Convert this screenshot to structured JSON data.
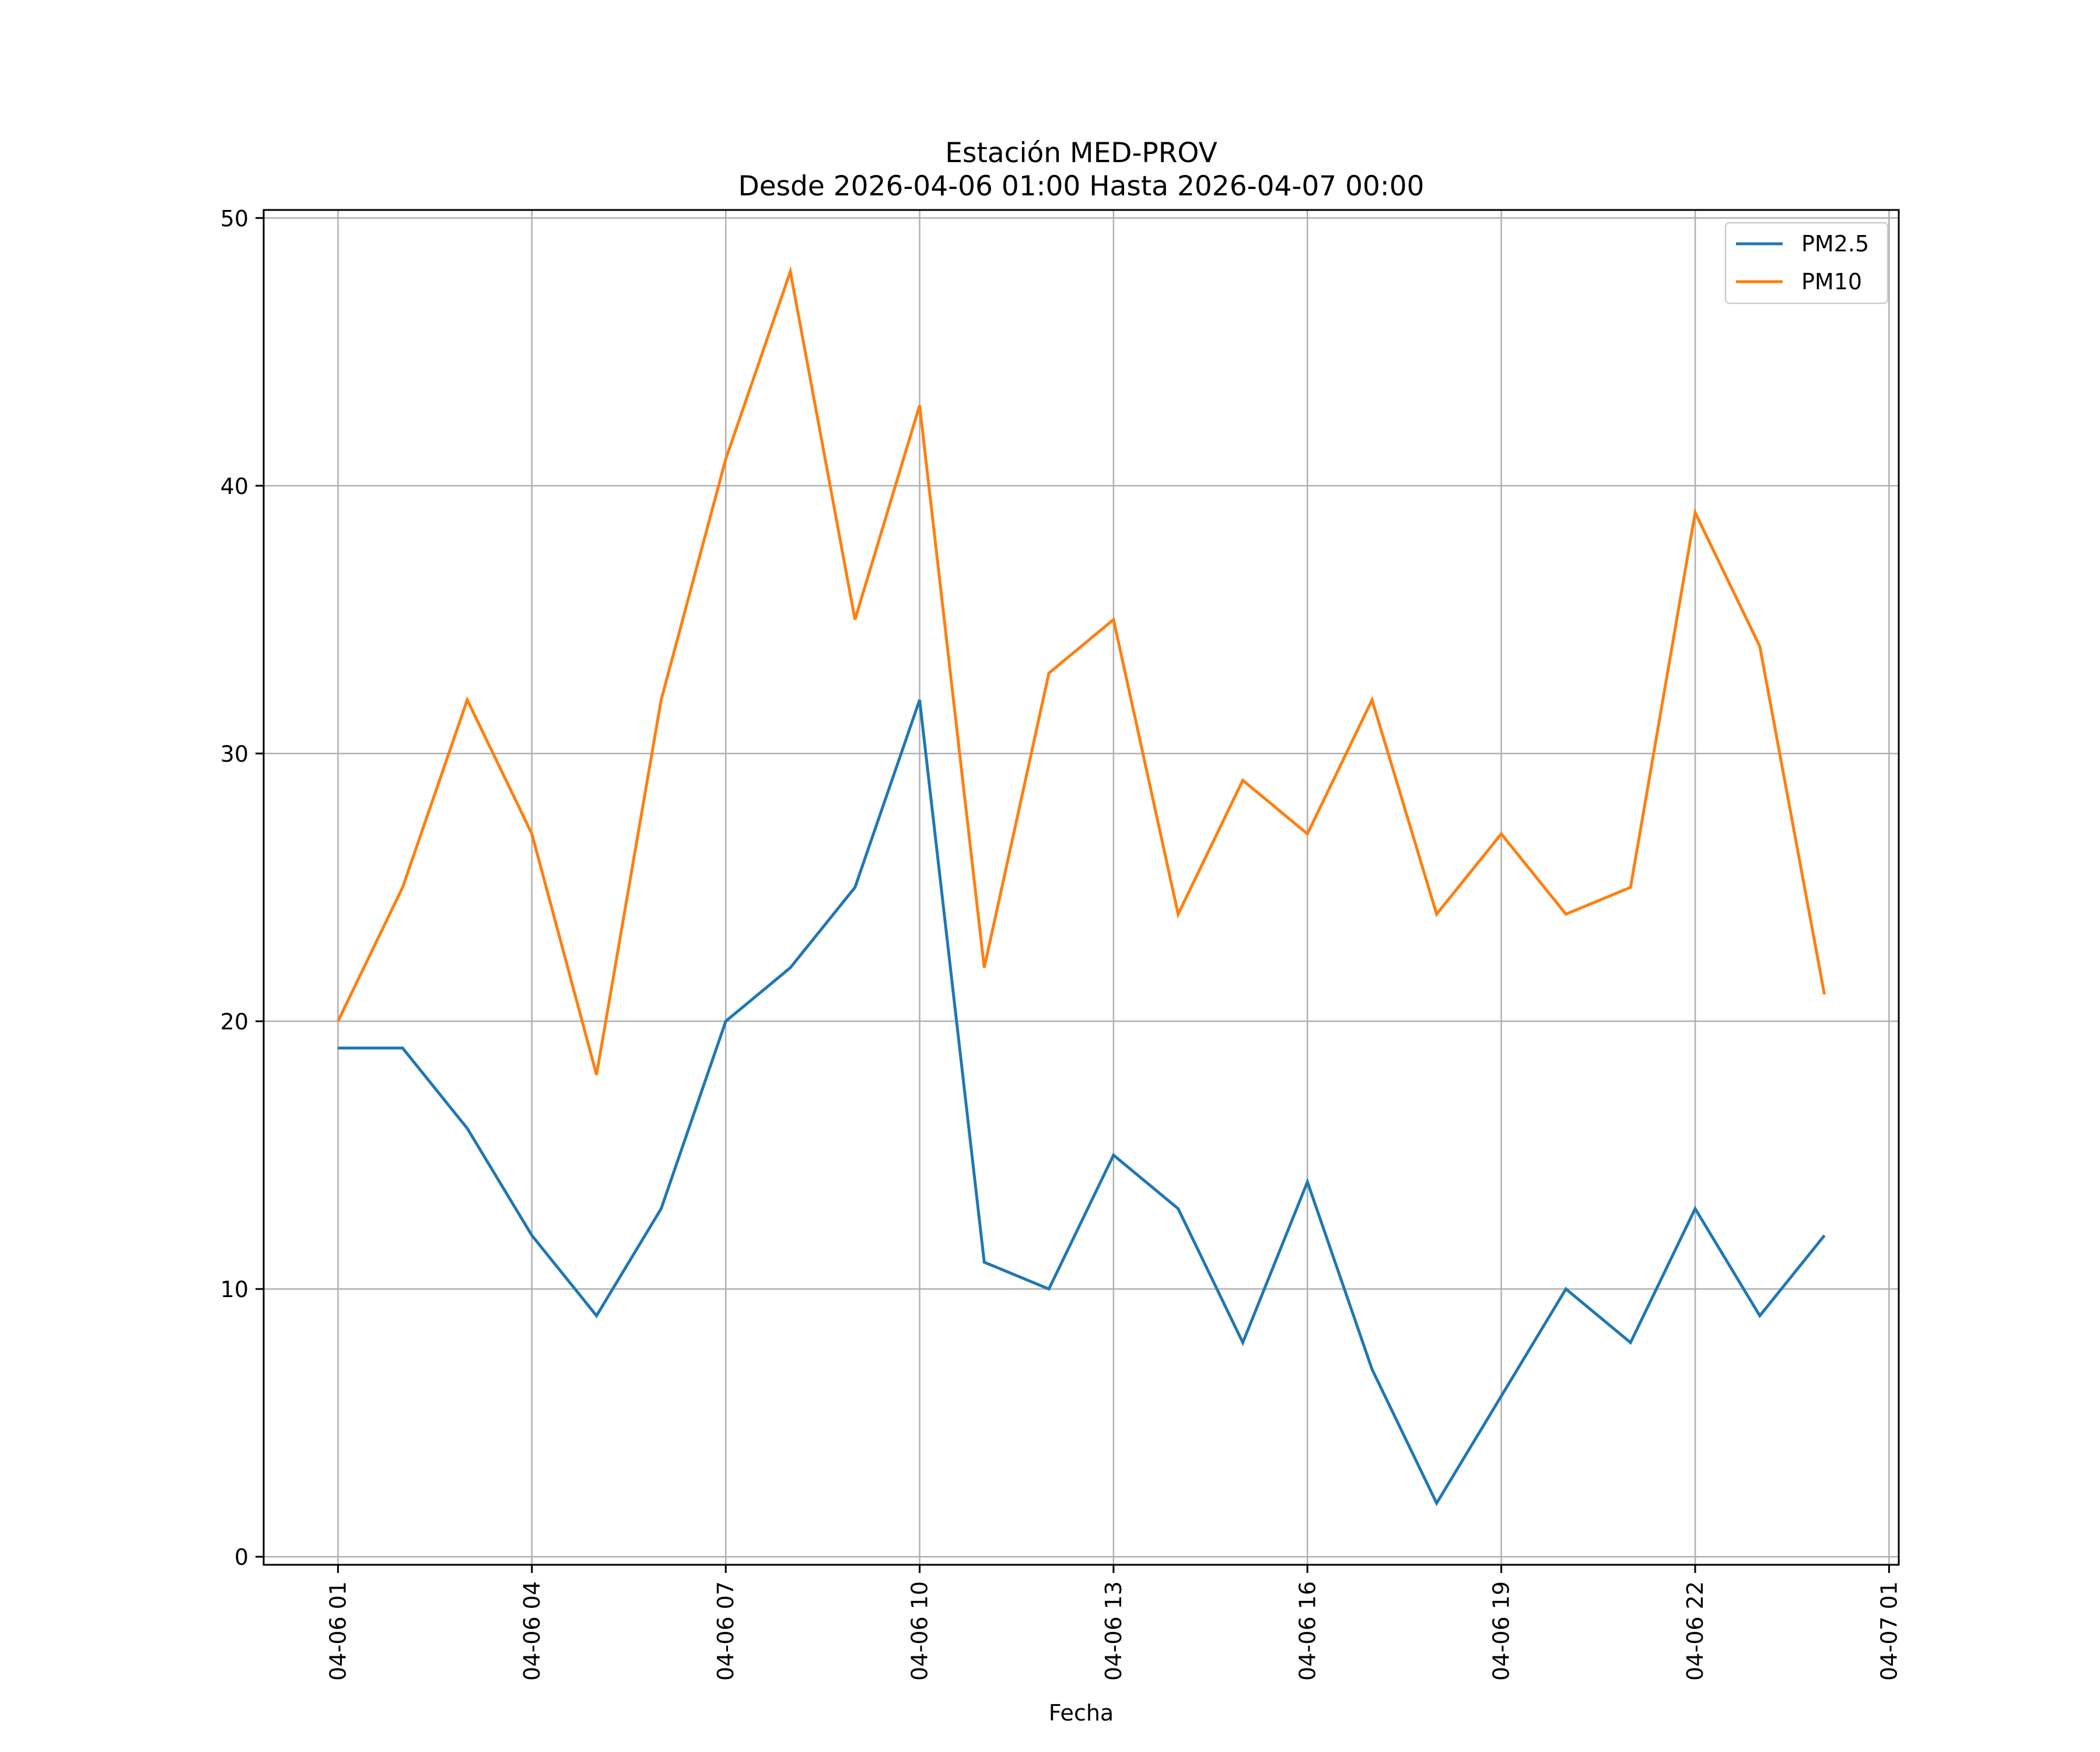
{
  "chart_data": {
    "type": "line",
    "title": "Estación MED-PROV",
    "subtitle": "Desde 2026-04-06 01:00 Hasta 2026-04-07 00:00",
    "xlabel": "Fecha",
    "ylabel": "",
    "grid": true,
    "legend_position": "top-right",
    "x": [
      "01:00",
      "02:00",
      "03:00",
      "04:00",
      "05:00",
      "06:00",
      "07:00",
      "08:00",
      "09:00",
      "10:00",
      "11:00",
      "12:00",
      "13:00",
      "14:00",
      "15:00",
      "16:00",
      "17:00",
      "18:00",
      "19:00",
      "20:00",
      "21:00",
      "22:00",
      "23:00",
      "00:00"
    ],
    "x_hours": [
      1,
      2,
      3,
      4,
      5,
      6,
      7,
      8,
      9,
      10,
      11,
      12,
      13,
      14,
      15,
      16,
      17,
      18,
      19,
      20,
      21,
      22,
      23,
      24
    ],
    "xlim_hours": [
      -0.15,
      25.15
    ],
    "ylim": [
      -0.3,
      50.3
    ],
    "x_ticks": [
      {
        "hour": 1,
        "label": "04-06 01"
      },
      {
        "hour": 4,
        "label": "04-06 04"
      },
      {
        "hour": 7,
        "label": "04-06 07"
      },
      {
        "hour": 10,
        "label": "04-06 10"
      },
      {
        "hour": 13,
        "label": "04-06 13"
      },
      {
        "hour": 16,
        "label": "04-06 16"
      },
      {
        "hour": 19,
        "label": "04-06 19"
      },
      {
        "hour": 22,
        "label": "04-06 22"
      },
      {
        "hour": 25,
        "label": "04-07 01"
      }
    ],
    "y_ticks": [
      {
        "value": 0,
        "label": "0"
      },
      {
        "value": 10,
        "label": "10"
      },
      {
        "value": 20,
        "label": "20"
      },
      {
        "value": 30,
        "label": "30"
      },
      {
        "value": 40,
        "label": "40"
      },
      {
        "value": 50,
        "label": "50"
      }
    ],
    "series": [
      {
        "name": "PM2.5",
        "color": "#1f77b4",
        "values": [
          19,
          19,
          16,
          12,
          9,
          13,
          20,
          22,
          25,
          32,
          11,
          10,
          15,
          13,
          8,
          14,
          7,
          2,
          6,
          10,
          8,
          13,
          9,
          12
        ]
      },
      {
        "name": "PM10",
        "color": "#ff7f0e",
        "values": [
          20,
          25,
          32,
          27,
          18,
          32,
          41,
          48,
          35,
          43,
          22,
          33,
          35,
          24,
          29,
          27,
          32,
          24,
          27,
          24,
          25,
          39,
          34,
          21
        ]
      }
    ]
  }
}
